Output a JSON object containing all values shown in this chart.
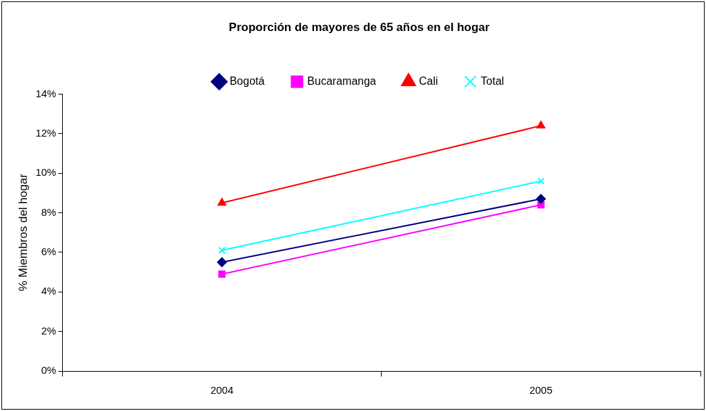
{
  "chart_data": {
    "type": "line",
    "title": "Proporción de mayores de 65 años en el hogar",
    "ylabel": "% Miembros del hogar",
    "categories": [
      "2004",
      "2005"
    ],
    "series": [
      {
        "name": "Bogotá",
        "color": "#000080",
        "marker": "diamond",
        "values": [
          5.5,
          8.7
        ]
      },
      {
        "name": "Bucaramanga",
        "color": "#ff00ff",
        "marker": "square",
        "values": [
          4.9,
          8.4
        ]
      },
      {
        "name": "Cali",
        "color": "#ff0000",
        "marker": "triangle",
        "values": [
          8.5,
          12.4
        ]
      },
      {
        "name": "Total",
        "color": "#00ffff",
        "marker": "cross",
        "values": [
          6.1,
          9.6
        ]
      }
    ],
    "ylim": [
      0,
      14
    ],
    "yticks": [
      {
        "value": 0,
        "label": "0%"
      },
      {
        "value": 2,
        "label": "2%"
      },
      {
        "value": 4,
        "label": "4%"
      },
      {
        "value": 6,
        "label": "6%"
      },
      {
        "value": 8,
        "label": "8%"
      },
      {
        "value": 10,
        "label": "10%"
      },
      {
        "value": 12,
        "label": "12%"
      },
      {
        "value": 14,
        "label": "14%"
      }
    ],
    "grid": false,
    "legend": "top",
    "line_style": "solid"
  }
}
